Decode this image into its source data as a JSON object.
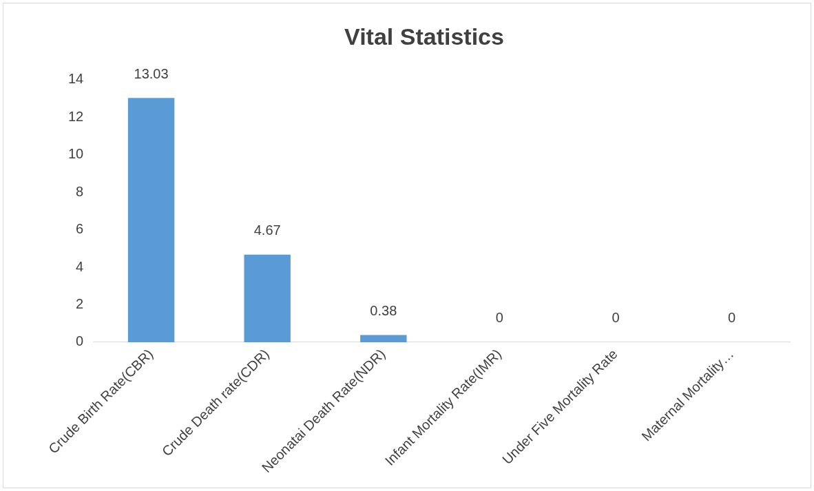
{
  "chart_data": {
    "type": "bar",
    "title": "Vital Statistics",
    "categories": [
      "Crude Birth Rate(CBR)",
      "Crude Death rate(CDR)",
      "Neonatai Death Rate(NDR)",
      "Infant Mortality Rate(IMR)",
      "Under Five Mortality Rate",
      "Maternal Mortality…"
    ],
    "values": [
      13.03,
      4.67,
      0.38,
      0,
      0,
      0
    ],
    "color": "#5b9bd5",
    "ylim": [
      0,
      14
    ],
    "yticks": [
      0,
      2,
      4,
      6,
      8,
      10,
      12,
      14
    ],
    "grid": false,
    "legend": false,
    "data_labels": true
  }
}
